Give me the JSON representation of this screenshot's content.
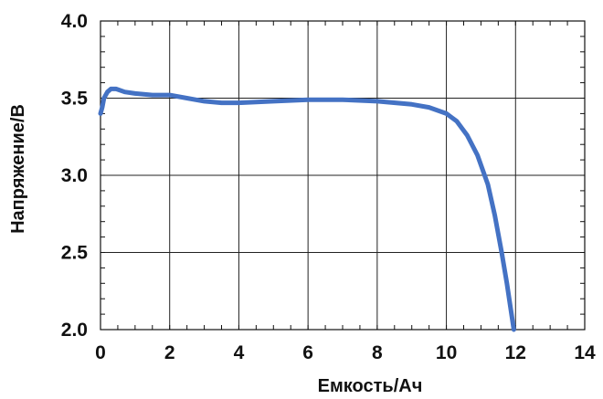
{
  "chart_data": {
    "type": "line",
    "title": "",
    "xlabel": "Емкость/Ач",
    "ylabel": "Напряжение/В",
    "xlim": [
      0,
      14
    ],
    "ylim": [
      2.0,
      4.0
    ],
    "x_ticks": [
      "0",
      "2",
      "4",
      "6",
      "8",
      "10",
      "12",
      "14"
    ],
    "y_ticks": [
      "2.0",
      "2.5",
      "3.0",
      "3.5",
      "4.0"
    ],
    "grid": true,
    "series": [
      {
        "color": "#4472c4",
        "x": [
          0.0,
          0.05,
          0.1,
          0.2,
          0.3,
          0.45,
          0.7,
          1.0,
          1.5,
          2.0,
          2.5,
          3.0,
          3.5,
          4.0,
          5.0,
          6.0,
          7.0,
          8.0,
          9.0,
          9.5,
          10.0,
          10.3,
          10.6,
          10.9,
          11.2,
          11.4,
          11.6,
          11.75,
          11.85,
          11.95
        ],
        "y": [
          3.4,
          3.44,
          3.5,
          3.54,
          3.56,
          3.56,
          3.54,
          3.53,
          3.52,
          3.52,
          3.5,
          3.48,
          3.47,
          3.47,
          3.48,
          3.49,
          3.49,
          3.48,
          3.46,
          3.44,
          3.4,
          3.35,
          3.26,
          3.13,
          2.94,
          2.74,
          2.5,
          2.3,
          2.15,
          2.0
        ]
      }
    ]
  }
}
